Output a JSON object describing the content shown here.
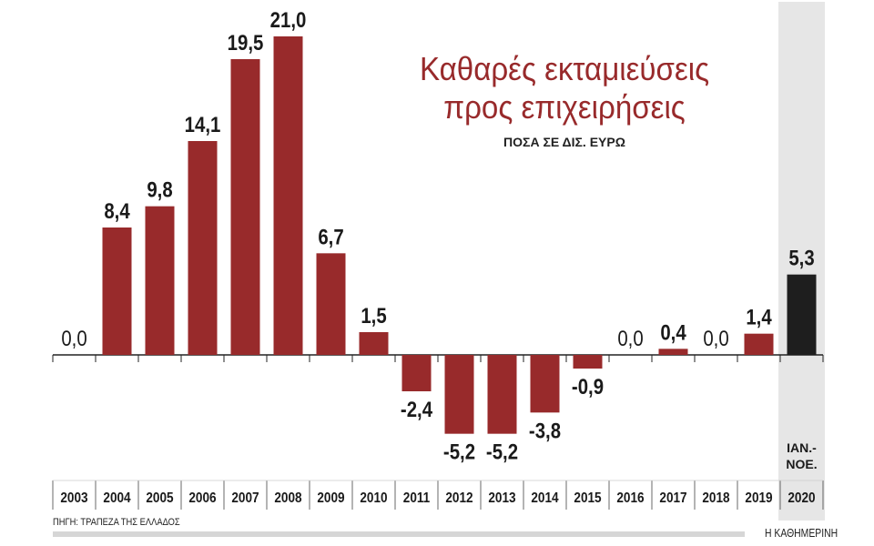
{
  "chart_data": {
    "type": "bar",
    "title": "Καθαρές εκταμιεύσεις προς επιχειρήσεις",
    "title_lines": [
      "Καθαρές εκταμιεύσεις",
      "προς επιχειρήσεις"
    ],
    "subtitle": "ΠΟΣΑ ΣΕ ΔΙΣ. ΕΥΡΩ",
    "categories": [
      "2003",
      "2004",
      "2005",
      "2006",
      "2007",
      "2008",
      "2009",
      "2010",
      "2011",
      "2012",
      "2013",
      "2014",
      "2015",
      "2016",
      "2017",
      "2018",
      "2019",
      "2020"
    ],
    "values": [
      0.0,
      8.4,
      9.8,
      14.1,
      19.5,
      21.0,
      6.7,
      1.5,
      -2.4,
      -5.2,
      -5.2,
      -3.8,
      -0.9,
      0.0,
      0.4,
      0.0,
      1.4,
      5.3
    ],
    "value_labels": [
      "0,0",
      "8,4",
      "9,8",
      "14,1",
      "19,5",
      "21,0",
      "6,7",
      "1,5",
      "-2,4",
      "-5,2",
      "-5,2",
      "-3,8",
      "-0,9",
      "0,0",
      "0,4",
      "0,0",
      "1,4",
      "5,3"
    ],
    "highlight": {
      "category": "2020",
      "note": "ΙΑΝ.-ΝΟΕ.",
      "note_lines": [
        "ΙΑΝ.-",
        "ΝΟΕ."
      ],
      "color": "#1e1e1e",
      "background": "#e6e6e6"
    },
    "colors": {
      "bar": "#982a2b",
      "title": "#982a2b"
    },
    "ylim": [
      -6,
      22
    ],
    "grid": false
  },
  "footer": {
    "source": "ΠΗΓΗ: ΤΡΑΠΕΖΑ ΤΗΣ ΕΛΛΑΔΟΣ",
    "logo": "Η ΚΑΘΗΜΕΡΙΝΗ"
  }
}
